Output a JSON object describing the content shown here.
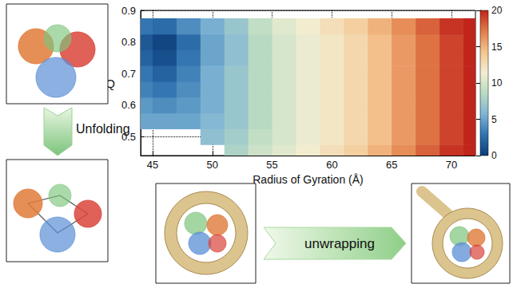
{
  "chart_data": {
    "type": "heatmap",
    "x_label": "Radius of Gyration (Å)",
    "y_label": "Q",
    "x": [
      44,
      46,
      48,
      50,
      52,
      54,
      56,
      58,
      60,
      62,
      64,
      66,
      68,
      70,
      72
    ],
    "y": [
      0.45,
      0.5,
      0.55,
      0.6,
      0.65,
      0.7,
      0.75,
      0.8,
      0.85
    ],
    "values": [
      [
        null,
        null,
        null,
        null,
        8,
        9.5,
        10.5,
        11.5,
        12.5,
        13.5,
        15,
        16.5,
        18,
        19.5,
        20
      ],
      [
        null,
        null,
        null,
        6.5,
        7.5,
        9,
        10,
        11,
        12,
        13,
        14.5,
        16,
        17.5,
        19,
        20
      ],
      [
        5,
        5,
        5,
        6,
        7,
        8.5,
        10,
        11,
        12,
        13,
        14.5,
        16,
        17.5,
        19,
        20
      ],
      [
        4.5,
        4,
        4.5,
        5.5,
        7,
        8.5,
        10,
        11,
        12,
        13,
        14.5,
        16,
        17.5,
        19,
        20
      ],
      [
        3.5,
        3,
        4,
        5.5,
        7,
        8.5,
        10,
        11,
        12,
        13,
        14.5,
        16,
        17.5,
        19,
        20
      ],
      [
        3,
        2,
        3.5,
        5.5,
        7,
        8.5,
        10,
        11,
        12,
        13,
        14.5,
        16,
        17.5,
        19,
        20
      ],
      [
        2,
        1,
        3,
        5,
        6.5,
        8.5,
        10,
        11,
        12,
        13,
        14.5,
        16,
        17.5,
        19,
        20
      ],
      [
        1.5,
        0.5,
        2.5,
        5,
        6.5,
        8.5,
        10,
        11,
        12,
        13,
        14.5,
        16,
        17.5,
        19,
        20
      ],
      [
        3,
        2.5,
        4,
        5.5,
        7,
        9,
        10.5,
        11.5,
        12.5,
        13.5,
        15,
        16.5,
        18,
        19.5,
        20
      ]
    ],
    "xlim": [
      44,
      72
    ],
    "ylim": [
      0.44,
      0.9
    ],
    "xticks": [
      45,
      50,
      55,
      60,
      65,
      70
    ],
    "yticks": [
      0.5,
      0.6,
      0.7,
      0.8,
      0.9
    ],
    "grid": true,
    "colorbar": {
      "range": [
        0,
        20
      ],
      "ticks": [
        0,
        5,
        10,
        15,
        20
      ]
    }
  },
  "labels": {
    "unfolding": "Unfolding",
    "unwrapping": "unwrapping"
  }
}
